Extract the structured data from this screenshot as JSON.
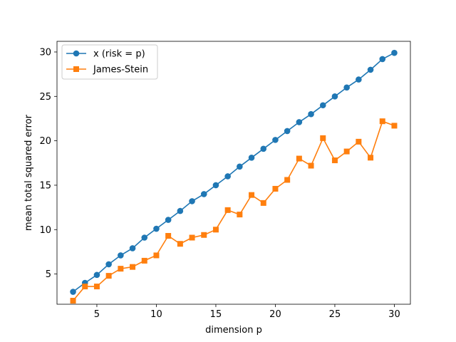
{
  "chart_data": {
    "type": "line",
    "xlabel": "dimension p",
    "ylabel": "mean total squared error",
    "xlim": [
      1.65,
      31.35
    ],
    "ylim": [
      1.6,
      31.2
    ],
    "xticks": [
      5,
      10,
      15,
      20,
      25,
      30
    ],
    "yticks": [
      5,
      10,
      15,
      20,
      25,
      30
    ],
    "grid": false,
    "legend_position": "upper-left",
    "x": [
      3,
      4,
      5,
      6,
      7,
      8,
      9,
      10,
      11,
      12,
      13,
      14,
      15,
      16,
      17,
      18,
      19,
      20,
      21,
      22,
      23,
      24,
      25,
      26,
      27,
      28,
      29,
      30
    ],
    "series": [
      {
        "name": "x (risk = p)",
        "color": "#1f77b4",
        "marker": "circle",
        "values": [
          3.0,
          4.0,
          4.9,
          6.1,
          7.1,
          7.9,
          9.1,
          10.1,
          11.1,
          12.1,
          13.2,
          14.0,
          15.0,
          16.0,
          17.1,
          18.1,
          19.1,
          20.1,
          21.1,
          22.1,
          23.0,
          24.0,
          25.0,
          26.0,
          26.9,
          28.0,
          29.2,
          29.9
        ]
      },
      {
        "name": "James-Stein",
        "color": "#ff7f0e",
        "marker": "square",
        "values": [
          2.0,
          3.6,
          3.6,
          4.8,
          5.6,
          5.8,
          6.5,
          7.1,
          9.3,
          8.4,
          9.1,
          9.4,
          10.0,
          12.2,
          11.7,
          13.9,
          13.0,
          14.6,
          15.6,
          18.0,
          17.2,
          20.3,
          17.8,
          18.8,
          19.9,
          18.1,
          22.2,
          21.7
        ]
      }
    ]
  }
}
